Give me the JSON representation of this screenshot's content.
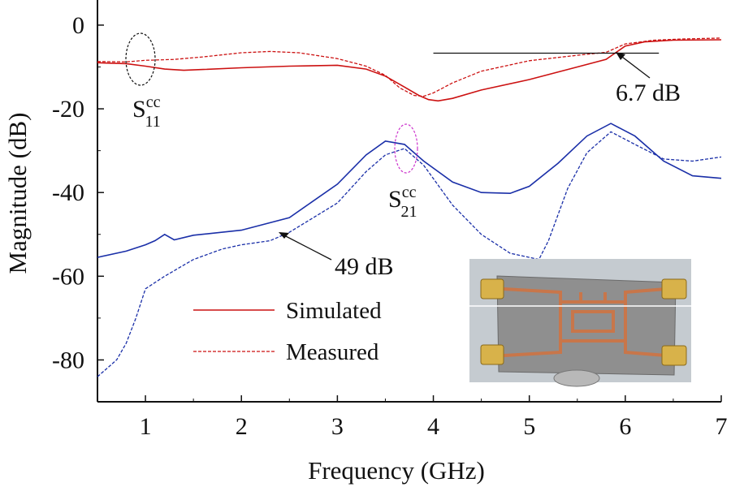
{
  "chart_data": {
    "type": "line",
    "xlabel": "Frequency (GHz)",
    "ylabel": "Magnitude (dB)",
    "xlim": [
      0.5,
      7
    ],
    "ylim": [
      -90,
      6
    ],
    "xticks": [
      1,
      2,
      3,
      4,
      5,
      6,
      7
    ],
    "yticks": [
      0,
      -20,
      -40,
      -60,
      -80
    ],
    "grid": false,
    "legend": {
      "position": "lower-left",
      "entries": [
        {
          "label": "Simulated",
          "style": "solid",
          "color": "#cc1111"
        },
        {
          "label": "Measured",
          "style": "dashed",
          "color": "#cc1111"
        }
      ]
    },
    "series": [
      {
        "name": "S11cc Simulated",
        "color": "#cc1111",
        "style": "solid",
        "x": [
          0.5,
          0.8,
          1.0,
          1.2,
          1.4,
          1.6,
          2.0,
          2.5,
          3.0,
          3.3,
          3.5,
          3.7,
          3.85,
          3.95,
          4.05,
          4.2,
          4.5,
          5.0,
          5.5,
          5.8,
          6.0,
          6.2,
          6.5,
          7.0
        ],
        "y": [
          -9,
          -9.2,
          -9.8,
          -10.5,
          -10.8,
          -10.6,
          -10.2,
          -9.8,
          -9.6,
          -10.5,
          -12.2,
          -14.8,
          -16.8,
          -17.8,
          -18.1,
          -17.5,
          -15.5,
          -13,
          -10,
          -8.2,
          -5,
          -4,
          -3.6,
          -3.5
        ]
      },
      {
        "name": "S11cc Measured",
        "color": "#cc1111",
        "style": "dashed",
        "x": [
          0.5,
          0.8,
          1.0,
          1.3,
          1.6,
          2.0,
          2.3,
          2.6,
          3.0,
          3.3,
          3.5,
          3.65,
          3.8,
          3.9,
          4.0,
          4.2,
          4.5,
          5.0,
          5.5,
          5.8,
          6.0,
          6.3,
          6.6,
          7.0
        ],
        "y": [
          -8.7,
          -8.8,
          -8.4,
          -8.2,
          -7.6,
          -6.6,
          -6.3,
          -6.6,
          -8,
          -9.8,
          -12,
          -15,
          -16.8,
          -17,
          -16.2,
          -13.8,
          -11,
          -8.5,
          -7.2,
          -6.5,
          -4.5,
          -3.6,
          -3.3,
          -3.1
        ]
      },
      {
        "name": "S21cc Simulated",
        "color": "#1a2fa8",
        "style": "solid",
        "x": [
          0.5,
          0.8,
          1.0,
          1.1,
          1.2,
          1.3,
          1.5,
          2.0,
          2.5,
          3.0,
          3.3,
          3.5,
          3.7,
          3.9,
          4.2,
          4.5,
          4.8,
          5.0,
          5.3,
          5.6,
          5.85,
          6.1,
          6.4,
          6.7,
          7.0
        ],
        "y": [
          -55.5,
          -54,
          -52.5,
          -51.5,
          -50,
          -51.3,
          -50.2,
          -49,
          -46,
          -38,
          -31,
          -27.7,
          -28.5,
          -32.5,
          -37.5,
          -40,
          -40.2,
          -38.5,
          -33,
          -26.5,
          -23.5,
          -26.5,
          -32.5,
          -36,
          -36.6
        ]
      },
      {
        "name": "S21cc Measured",
        "color": "#1a2fa8",
        "style": "dashed",
        "x": [
          0.5,
          0.6,
          0.7,
          0.8,
          0.9,
          1.0,
          1.2,
          1.5,
          1.8,
          2.0,
          2.3,
          2.5,
          3.0,
          3.3,
          3.5,
          3.7,
          3.9,
          4.2,
          4.5,
          4.8,
          5.0,
          5.1,
          5.2,
          5.4,
          5.6,
          5.85,
          6.1,
          6.4,
          6.7,
          7.0
        ],
        "y": [
          -84,
          -82,
          -80,
          -76,
          -70,
          -63,
          -60,
          -56,
          -53.5,
          -52.5,
          -51.5,
          -49.5,
          -42.5,
          -35,
          -31,
          -29.5,
          -33.5,
          -43,
          -50,
          -54.5,
          -55.5,
          -56,
          -51.5,
          -39,
          -30.5,
          -25.5,
          -28.5,
          -32,
          -32.5,
          -31.5
        ]
      }
    ],
    "annotations": {
      "s11_label_base": "S",
      "s11_label_sup": "cc",
      "s11_label_sub": "11",
      "s21_label_base": "S",
      "s21_label_sup": "cc",
      "s21_label_sub": "21",
      "value_67": "6.7 dB",
      "value_49": "49 dB",
      "reference_line_db": -6.7,
      "reference_line_x": [
        4.0,
        6.35
      ]
    },
    "inset": {
      "description_colors": {
        "board": "#8f8f8f",
        "trace": "#c8764a",
        "connector": "#d8b24a"
      }
    }
  }
}
